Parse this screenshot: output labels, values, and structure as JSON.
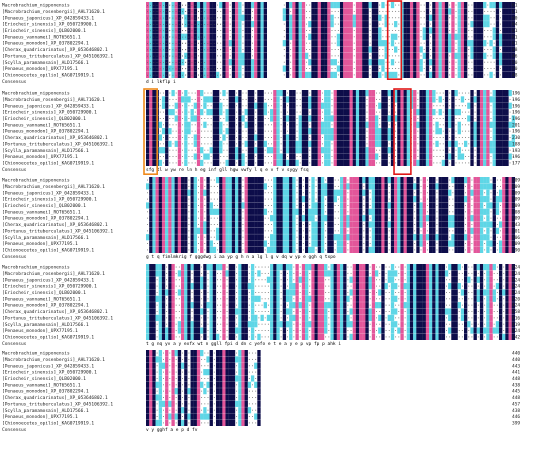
{
  "colors": {
    "identical": "#0d0d4a",
    "high": "#e3569a",
    "medium": "#5fd6e6",
    "low": "#ffffff",
    "box_red": "#e01818",
    "box_orange": "#ef8a1c"
  },
  "species": [
    "Macrobrachium_nipponensis",
    "[Macrobrachium_rosenbergii]_AHL71620.1",
    "[Penaeus_japonicus]_XP_042859433.1",
    "[Eriocheir_sinensis]_XP_050729900.1",
    "[Eriocheir_sinensis]_QLB02000.1",
    "[Penaeus_vannamei]_ROT65651.1",
    "[Penaeus_monodon]_XP_037802294.1",
    "[Cherax_quadricarinatus]_XP_053646802.1",
    "[Portunus_trituberculatus]_XP_045106392.1",
    "[Scylla_paramamosain]_ALD17566.1",
    "[Penaeus_monodon]_UPX77195.1",
    "[Chionoecetes_opilio]_KAG0719919.1"
  ],
  "consensus_label": "Consensus",
  "blocks": [
    {
      "ends": [
        "61",
        "61",
        "60",
        "64",
        "61",
        "61",
        "61",
        "48",
        "46",
        "50",
        "70",
        "48"
      ],
      "consensus": "                                          d  i     lkflp i"
    },
    {
      "ends": [
        "196",
        "196",
        "196",
        "196",
        "196",
        "201",
        "196",
        "230",
        "188",
        "193",
        "196",
        "177"
      ],
      "consensus": "sfg     tl   w  yw    re  ln  h     eg  inf           gll  hgw   vwfy   l   q  e v f  v  sygy fsq"
    },
    {
      "ends": [
        "309",
        "309",
        "309",
        "309",
        "309",
        "308",
        "309",
        "343",
        "301",
        "306",
        "309",
        "290"
      ],
      "consensus": "g     t   q  fimlmkrig   f    gggdwg  i  aa  yp      g h n                  a  lg  l  g   v   dq  w yp       e ggh  q txpo"
    },
    {
      "ends": [
        "424",
        "424",
        "424",
        "424",
        "424",
        "420",
        "424",
        "458",
        "416",
        "419",
        "424",
        "342"
      ],
      "consensus": "t g   nq yv a y  exfx wt  n   ggll   fpi   d   dn  c  yefo  e  t e a  y  e          p   vp      fp        p     ahk    i"
    },
    {
      "ends": [
        "440",
        "440",
        "443",
        "441",
        "448",
        "438",
        "445",
        "448",
        "457",
        "438",
        "446",
        "399"
      ],
      "consensus": "  v y   gghf a  e p      d  fv"
    }
  ]
}
